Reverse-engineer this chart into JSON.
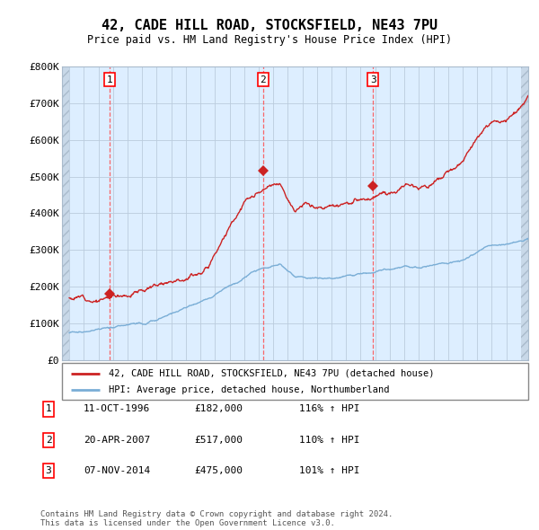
{
  "title": "42, CADE HILL ROAD, STOCKSFIELD, NE43 7PU",
  "subtitle": "Price paid vs. HM Land Registry's House Price Index (HPI)",
  "ylim": [
    0,
    800000
  ],
  "yticks": [
    0,
    100000,
    200000,
    300000,
    400000,
    500000,
    600000,
    700000,
    800000
  ],
  "ytick_labels": [
    "£0",
    "£100K",
    "£200K",
    "£300K",
    "£400K",
    "£500K",
    "£600K",
    "£700K",
    "£800K"
  ],
  "hpi_color": "#7aaed6",
  "price_color": "#cc2222",
  "grid_color": "#bbccdd",
  "bg_color": "#ddeeff",
  "legend_label_price": "42, CADE HILL ROAD, STOCKSFIELD, NE43 7PU (detached house)",
  "legend_label_hpi": "HPI: Average price, detached house, Northumberland",
  "sales": [
    {
      "num": 1,
      "date_x": 1996.78,
      "price": 182000,
      "date_str": "11-OCT-1996",
      "price_str": "£182,000",
      "hpi_pct": "116%"
    },
    {
      "num": 2,
      "date_x": 2007.3,
      "price": 517000,
      "date_str": "20-APR-2007",
      "price_str": "£517,000",
      "hpi_pct": "110%"
    },
    {
      "num": 3,
      "date_x": 2014.85,
      "price": 475000,
      "date_str": "07-NOV-2014",
      "price_str": "£475,000",
      "hpi_pct": "101%"
    }
  ],
  "footer": "Contains HM Land Registry data © Crown copyright and database right 2024.\nThis data is licensed under the Open Government Licence v3.0.",
  "xmin": 1993.5,
  "xmax": 2025.5,
  "hatch_right_start": 2025.0
}
